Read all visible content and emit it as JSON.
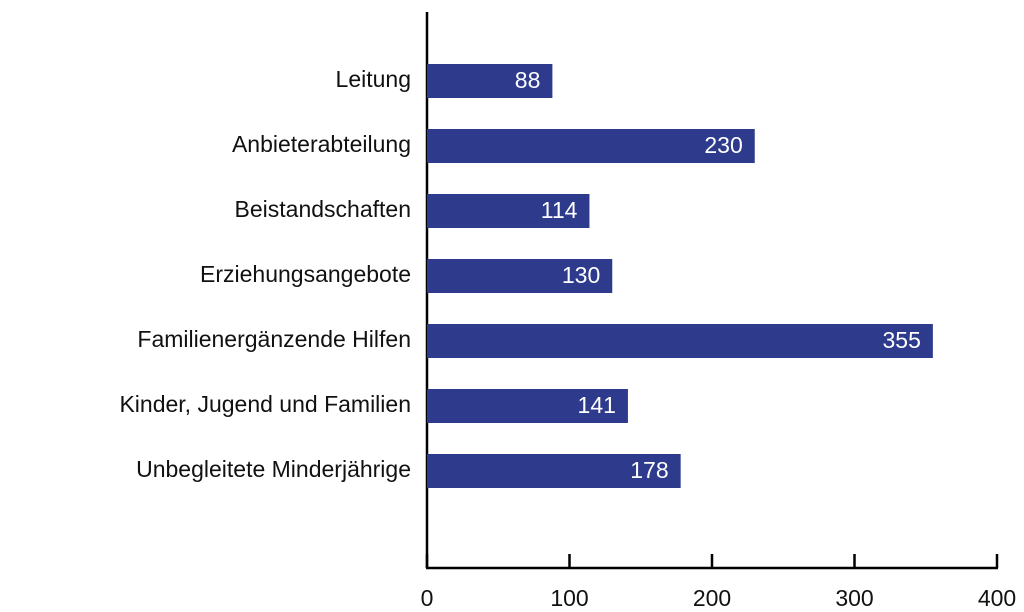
{
  "chart_data": {
    "type": "bar",
    "orientation": "horizontal",
    "categories": [
      "Leitung",
      "Anbieterabteilung",
      "Beistandschaften",
      "Erziehungsangebote",
      "Familienergänzende Hilfen",
      "Kinder, Jugend und Familien",
      "Unbegleitete Minderjährige"
    ],
    "values": [
      88,
      230,
      114,
      130,
      355,
      141,
      178
    ],
    "color": "#2e3a8c",
    "xlim": [
      0,
      400
    ],
    "xticks": [
      0,
      100,
      200,
      300,
      400
    ]
  }
}
